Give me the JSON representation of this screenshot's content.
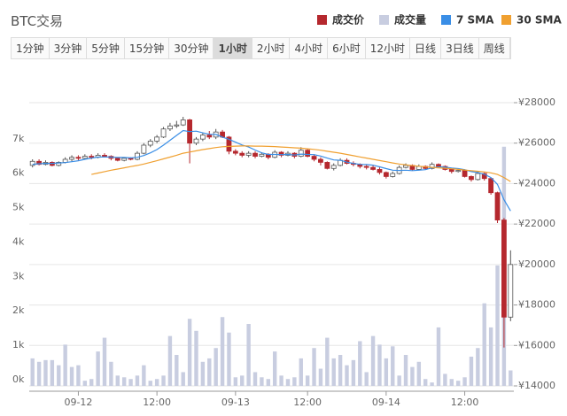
{
  "title": "BTC交易",
  "buttons": [
    {
      "label": "1分钟"
    },
    {
      "label": "3分钟"
    },
    {
      "label": "5分钟"
    },
    {
      "label": "15分钟"
    },
    {
      "label": "30分钟"
    },
    {
      "label": "1小时",
      "selected": true
    },
    {
      "label": "2小时"
    },
    {
      "label": "4小时"
    },
    {
      "label": "6小时"
    },
    {
      "label": "12小时"
    },
    {
      "label": "日线"
    },
    {
      "label": "3日线"
    },
    {
      "label": "周线"
    }
  ],
  "chart_data": {
    "type": "candlestick",
    "categories": [
      null,
      null,
      null,
      null,
      null,
      null,
      null,
      "09-12",
      null,
      null,
      null,
      null,
      null,
      null,
      null,
      null,
      null,
      null,
      null,
      "12:00",
      null,
      null,
      null,
      null,
      null,
      null,
      null,
      null,
      null,
      null,
      null,
      "09-13",
      null,
      null,
      null,
      null,
      null,
      null,
      null,
      null,
      null,
      null,
      "12:00",
      null,
      null,
      null,
      null,
      null,
      null,
      null,
      null,
      null,
      null,
      null,
      "09-14",
      null,
      null,
      null,
      null,
      null,
      null,
      null,
      null,
      null,
      null,
      null,
      "12:00",
      null,
      null,
      null,
      null,
      null,
      null,
      null
    ],
    "series": [
      {
        "name": "成交价",
        "color": "#b5282e",
        "open": [
          24900,
          25100,
          24950,
          25050,
          24900,
          25050,
          25200,
          25300,
          25250,
          25350,
          25300,
          25400,
          25350,
          25250,
          25150,
          25250,
          25200,
          25500,
          25900,
          26100,
          26300,
          26700,
          26850,
          26900,
          27150,
          26000,
          26200,
          26400,
          26300,
          26550,
          26300,
          25600,
          25500,
          25400,
          25500,
          25350,
          25450,
          25300,
          25550,
          25400,
          25500,
          25350,
          25650,
          25350,
          25200,
          25050,
          24750,
          24900,
          25150,
          25000,
          24950,
          24850,
          24800,
          24700,
          24550,
          24350,
          24500,
          24800,
          24900,
          24700,
          24850,
          24750,
          24950,
          24850,
          24700,
          24600,
          24650,
          24350,
          24200,
          24500,
          24250,
          23550,
          22200,
          17400
        ],
        "close": [
          25100,
          24950,
          25050,
          24900,
          25050,
          25200,
          25300,
          25250,
          25350,
          25300,
          25400,
          25350,
          25250,
          25150,
          25250,
          25200,
          25500,
          25900,
          26100,
          26300,
          26700,
          26850,
          26900,
          27150,
          26000,
          26200,
          26400,
          26300,
          26550,
          26300,
          25600,
          25500,
          25400,
          25500,
          25350,
          25450,
          25300,
          25550,
          25400,
          25500,
          25350,
          25650,
          25350,
          25200,
          25050,
          24750,
          24900,
          25150,
          25000,
          24950,
          24850,
          24800,
          24700,
          24550,
          24350,
          24500,
          24800,
          24900,
          24700,
          24850,
          24750,
          24950,
          24850,
          24700,
          24600,
          24650,
          24350,
          24200,
          24500,
          24250,
          23550,
          22200,
          17400,
          20000
        ],
        "high": [
          25200,
          25200,
          25150,
          25100,
          25100,
          25300,
          25400,
          25400,
          25450,
          25450,
          25500,
          25500,
          25400,
          25300,
          25300,
          25300,
          25600,
          26000,
          26200,
          26400,
          26800,
          27000,
          27100,
          27300,
          27200,
          26300,
          26500,
          26600,
          26700,
          26650,
          26350,
          25700,
          25600,
          25600,
          25600,
          25550,
          25500,
          25650,
          25600,
          25600,
          25550,
          25800,
          25700,
          25450,
          25300,
          25100,
          25000,
          25250,
          25250,
          25100,
          25000,
          24950,
          24900,
          24800,
          24600,
          24600,
          24900,
          25000,
          24950,
          24950,
          24900,
          25050,
          25000,
          24900,
          24750,
          24750,
          24700,
          24400,
          24600,
          24550,
          24300,
          23600,
          22300,
          20700
        ],
        "low": [
          24800,
          24900,
          24900,
          24850,
          24850,
          25000,
          25100,
          25150,
          25200,
          25200,
          25250,
          25300,
          25150,
          25100,
          25100,
          25150,
          25150,
          25450,
          25800,
          26000,
          26250,
          26600,
          26750,
          26850,
          25000,
          25900,
          26100,
          26200,
          26200,
          26250,
          25450,
          25400,
          25300,
          25300,
          25250,
          25300,
          25200,
          25250,
          25300,
          25350,
          25250,
          25300,
          25300,
          25100,
          24900,
          24700,
          24650,
          24850,
          24950,
          24850,
          24750,
          24700,
          24650,
          24450,
          24250,
          24300,
          24450,
          24750,
          24650,
          24650,
          24700,
          24700,
          24800,
          24650,
          24500,
          24550,
          24300,
          24100,
          24150,
          24150,
          23450,
          22050,
          15900,
          17200
        ]
      },
      {
        "name": "成交量",
        "color": "#c8cde0",
        "axis": "y2",
        "values": [
          800,
          700,
          750,
          750,
          600,
          1200,
          550,
          600,
          150,
          200,
          1000,
          1400,
          700,
          300,
          250,
          200,
          300,
          600,
          150,
          200,
          300,
          1450,
          900,
          400,
          1950,
          1600,
          700,
          800,
          1100,
          2000,
          1550,
          250,
          300,
          1800,
          400,
          250,
          200,
          1000,
          300,
          200,
          250,
          800,
          300,
          1100,
          500,
          1400,
          800,
          900,
          600,
          750,
          1300,
          400,
          1450,
          1200,
          800,
          1150,
          300,
          900,
          550,
          700,
          200,
          100,
          1700,
          350,
          200,
          150,
          250,
          850,
          1100,
          2400,
          1700,
          3500,
          6950,
          450
        ]
      },
      {
        "name": "7 SMA",
        "color": "#3a8ee6",
        "values": [
          24950,
          24980,
          25000,
          25000,
          25020,
          25040,
          25080,
          25130,
          25200,
          25260,
          25310,
          25320,
          25310,
          25290,
          25290,
          25270,
          25300,
          25390,
          25520,
          25680,
          25900,
          26140,
          26380,
          26620,
          26570,
          26590,
          26510,
          26440,
          26430,
          26300,
          26190,
          26050,
          25910,
          25810,
          25660,
          25520,
          25440,
          25440,
          25430,
          25440,
          25410,
          25460,
          25440,
          25430,
          25360,
          25260,
          25170,
          25150,
          25060,
          25000,
          24950,
          24940,
          24910,
          24830,
          24740,
          24660,
          24650,
          24660,
          24640,
          24660,
          24690,
          24780,
          24830,
          24810,
          24770,
          24740,
          24690,
          24590,
          24550,
          24460,
          24300,
          23960,
          23200,
          22650
        ]
      },
      {
        "name": "30 SMA",
        "color": "#f0a030",
        "values": [
          null,
          null,
          null,
          null,
          null,
          null,
          null,
          null,
          null,
          24450,
          24520,
          24590,
          24660,
          24720,
          24780,
          24840,
          24900,
          24970,
          25050,
          25130,
          25220,
          25310,
          25400,
          25500,
          25560,
          25620,
          25680,
          25730,
          25780,
          25820,
          25840,
          25850,
          25860,
          25860,
          25850,
          25850,
          25840,
          25830,
          25810,
          25790,
          25770,
          25750,
          25720,
          25690,
          25650,
          25600,
          25550,
          25500,
          25440,
          25380,
          25320,
          25260,
          25200,
          25140,
          25080,
          25020,
          24970,
          24930,
          24890,
          24860,
          24830,
          24800,
          24780,
          24760,
          24730,
          24700,
          24670,
          24640,
          24610,
          24580,
          24530,
          24450,
          24300,
          24100
        ]
      }
    ],
    "ylim": [
      14000,
      28000
    ],
    "yticks": [
      {
        "value": 14000,
        "label": "¥14000"
      },
      {
        "value": 16000,
        "label": "¥16000"
      },
      {
        "value": 18000,
        "label": "¥18000"
      },
      {
        "value": 20000,
        "label": "¥20000"
      },
      {
        "value": 22000,
        "label": "¥22000"
      },
      {
        "value": 24000,
        "label": "¥24000"
      },
      {
        "value": 26000,
        "label": "¥26000"
      },
      {
        "value": 28000,
        "label": "¥28000"
      }
    ],
    "y2lim": [
      0,
      8230
    ],
    "y2ticks": [
      {
        "value": 0,
        "label": "0k"
      },
      {
        "value": 1000,
        "label": "1k"
      },
      {
        "value": 2000,
        "label": "2k"
      },
      {
        "value": 3000,
        "label": "3k"
      },
      {
        "value": 4000,
        "label": "4k"
      },
      {
        "value": 5000,
        "label": "5k"
      },
      {
        "value": 6000,
        "label": "6k"
      },
      {
        "value": 7000,
        "label": "7k"
      }
    ],
    "grid": true
  }
}
